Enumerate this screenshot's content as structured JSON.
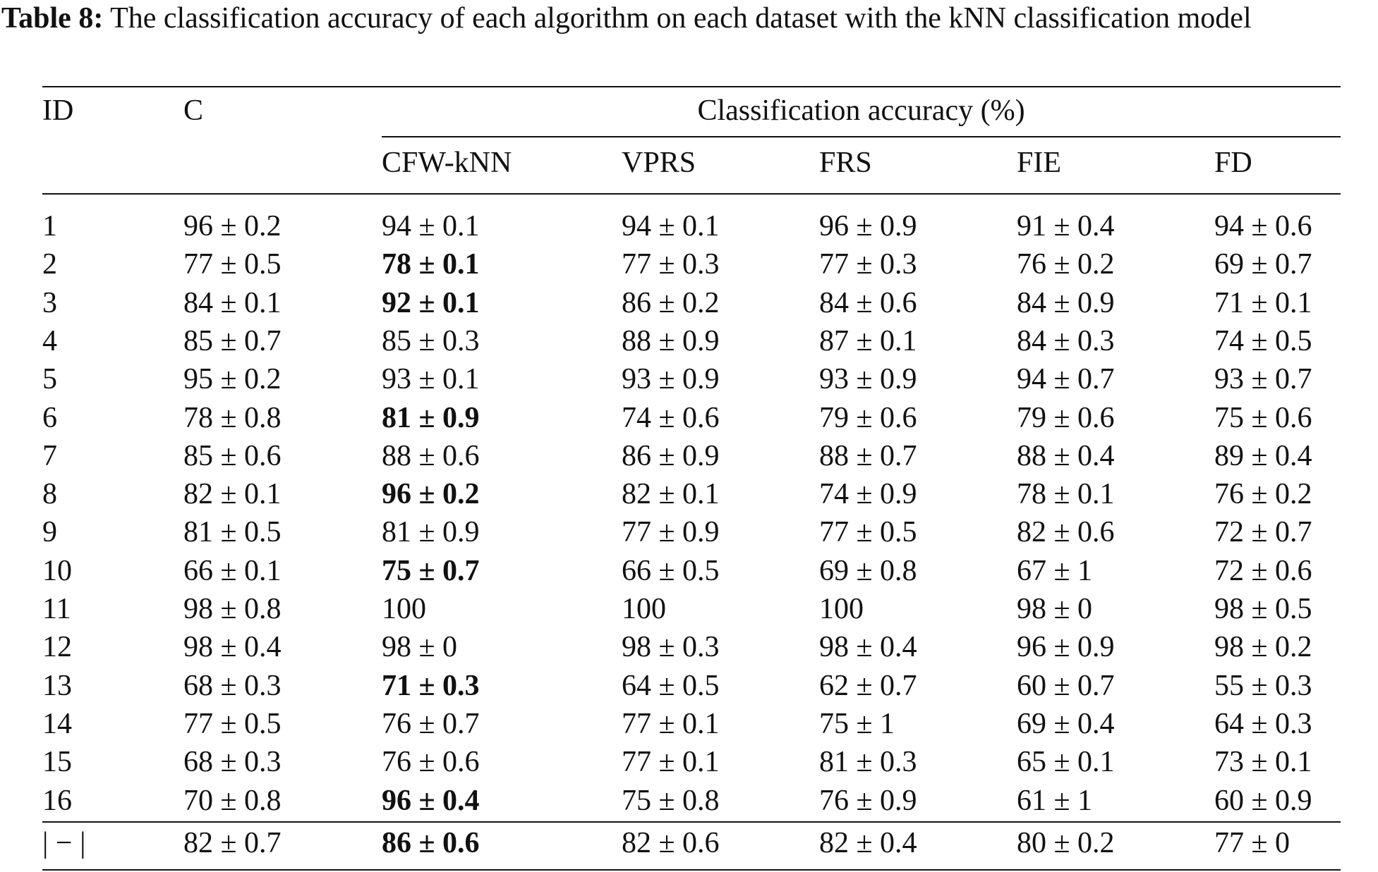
{
  "caption": {
    "label": "Table 8:",
    "text": "The classification accuracy of each algorithm on each dataset with the kNN classification model"
  },
  "table": {
    "headers": {
      "id": "ID",
      "c": "C",
      "group": "Classification accuracy (%)",
      "methods": [
        "CFW-kNN",
        "VPRS",
        "FRS",
        "FIE",
        "FD"
      ]
    },
    "rows": [
      {
        "id": "1",
        "cells": [
          "96 ± 0.2",
          "94 ± 0.1",
          "94 ± 0.1",
          "96 ± 0.9",
          "91 ± 0.4",
          "94 ± 0.6"
        ],
        "bold": [
          false,
          false,
          false,
          false,
          false,
          false
        ]
      },
      {
        "id": "2",
        "cells": [
          "77 ± 0.5",
          "78 ± 0.1",
          "77 ± 0.3",
          "77 ± 0.3",
          "76 ± 0.2",
          "69 ± 0.7"
        ],
        "bold": [
          false,
          true,
          false,
          false,
          false,
          false
        ]
      },
      {
        "id": "3",
        "cells": [
          "84 ± 0.1",
          "92 ± 0.1",
          "86 ± 0.2",
          "84 ± 0.6",
          "84 ± 0.9",
          "71 ± 0.1"
        ],
        "bold": [
          false,
          true,
          false,
          false,
          false,
          false
        ]
      },
      {
        "id": "4",
        "cells": [
          "85 ± 0.7",
          "85 ± 0.3",
          "88 ± 0.9",
          "87 ± 0.1",
          "84 ± 0.3",
          "74 ± 0.5"
        ],
        "bold": [
          false,
          false,
          false,
          false,
          false,
          false
        ]
      },
      {
        "id": "5",
        "cells": [
          "95 ± 0.2",
          "93 ± 0.1",
          "93 ± 0.9",
          "93 ± 0.9",
          "94 ± 0.7",
          "93 ± 0.7"
        ],
        "bold": [
          false,
          false,
          false,
          false,
          false,
          false
        ]
      },
      {
        "id": "6",
        "cells": [
          "78 ± 0.8",
          "81 ± 0.9",
          "74 ± 0.6",
          "79 ± 0.6",
          "79 ± 0.6",
          "75 ± 0.6"
        ],
        "bold": [
          false,
          true,
          false,
          false,
          false,
          false
        ]
      },
      {
        "id": "7",
        "cells": [
          "85 ± 0.6",
          "88 ± 0.6",
          "86 ± 0.9",
          "88 ± 0.7",
          "88 ± 0.4",
          "89 ± 0.4"
        ],
        "bold": [
          false,
          false,
          false,
          false,
          false,
          false
        ]
      },
      {
        "id": "8",
        "cells": [
          "82 ± 0.1",
          "96 ± 0.2",
          "82 ± 0.1",
          "74 ± 0.9",
          "78 ± 0.1",
          "76 ± 0.2"
        ],
        "bold": [
          false,
          true,
          false,
          false,
          false,
          false
        ]
      },
      {
        "id": "9",
        "cells": [
          "81 ± 0.5",
          "81 ± 0.9",
          "77 ± 0.9",
          "77 ± 0.5",
          "82 ± 0.6",
          "72 ± 0.7"
        ],
        "bold": [
          false,
          false,
          false,
          false,
          false,
          false
        ]
      },
      {
        "id": "10",
        "cells": [
          "66 ± 0.1",
          "75 ± 0.7",
          "66 ± 0.5",
          "69 ± 0.8",
          "67 ± 1",
          "72 ± 0.6"
        ],
        "bold": [
          false,
          true,
          false,
          false,
          false,
          false
        ]
      },
      {
        "id": "11",
        "cells": [
          "98 ± 0.8",
          "100",
          "100",
          "100",
          "98 ± 0",
          "98 ± 0.5"
        ],
        "bold": [
          false,
          false,
          false,
          false,
          false,
          false
        ]
      },
      {
        "id": "12",
        "cells": [
          "98 ± 0.4",
          "98 ± 0",
          "98 ± 0.3",
          "98 ± 0.4",
          "96 ± 0.9",
          "98 ± 0.2"
        ],
        "bold": [
          false,
          false,
          false,
          false,
          false,
          false
        ]
      },
      {
        "id": "13",
        "cells": [
          "68 ± 0.3",
          "71 ± 0.3",
          "64 ± 0.5",
          "62 ± 0.7",
          "60 ± 0.7",
          "55 ± 0.3"
        ],
        "bold": [
          false,
          true,
          false,
          false,
          false,
          false
        ]
      },
      {
        "id": "14",
        "cells": [
          "77 ± 0.5",
          "76 ± 0.7",
          "77 ± 0.1",
          "75 ± 1",
          "69 ± 0.4",
          "64 ± 0.3"
        ],
        "bold": [
          false,
          false,
          false,
          false,
          false,
          false
        ]
      },
      {
        "id": "15",
        "cells": [
          "68 ± 0.3",
          "76 ± 0.6",
          "77 ± 0.1",
          "81 ± 0.3",
          "65 ± 0.1",
          "73 ± 0.1"
        ],
        "bold": [
          false,
          false,
          false,
          false,
          false,
          false
        ]
      },
      {
        "id": "16",
        "cells": [
          "70 ± 0.8",
          "96 ± 0.4",
          "75 ± 0.8",
          "76 ± 0.9",
          "61 ± 1",
          "60 ± 0.9"
        ],
        "bold": [
          false,
          true,
          false,
          false,
          false,
          false
        ]
      }
    ],
    "summary": {
      "id": "| − |",
      "cells": [
        "82 ± 0.7",
        "86 ± 0.6",
        "82 ± 0.6",
        "82 ± 0.4",
        "80 ± 0.2",
        "77 ± 0"
      ],
      "bold": [
        false,
        true,
        false,
        false,
        false,
        false
      ]
    }
  }
}
